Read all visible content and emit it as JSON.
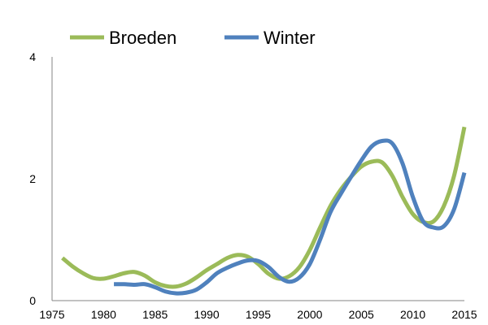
{
  "chart_data": {
    "type": "line",
    "title": "",
    "xlabel": "",
    "ylabel": "",
    "xlim": [
      1975,
      2015
    ],
    "ylim": [
      0,
      4
    ],
    "x_ticks": [
      1975,
      1980,
      1985,
      1990,
      1995,
      2000,
      2005,
      2010,
      2015
    ],
    "y_ticks": [
      0,
      2,
      4
    ],
    "grid": false,
    "legend_position": "top-left",
    "series": [
      {
        "name": "Broeden",
        "color": "#9BBB59",
        "points": [
          [
            1976,
            0.7
          ],
          [
            1977,
            0.56
          ],
          [
            1978,
            0.45
          ],
          [
            1979,
            0.37
          ],
          [
            1980,
            0.36
          ],
          [
            1981,
            0.4
          ],
          [
            1982,
            0.45
          ],
          [
            1983,
            0.47
          ],
          [
            1984,
            0.41
          ],
          [
            1985,
            0.3
          ],
          [
            1986,
            0.24
          ],
          [
            1987,
            0.23
          ],
          [
            1988,
            0.28
          ],
          [
            1989,
            0.38
          ],
          [
            1990,
            0.5
          ],
          [
            1991,
            0.6
          ],
          [
            1992,
            0.7
          ],
          [
            1993,
            0.75
          ],
          [
            1994,
            0.72
          ],
          [
            1995,
            0.6
          ],
          [
            1996,
            0.44
          ],
          [
            1997,
            0.36
          ],
          [
            1998,
            0.4
          ],
          [
            1999,
            0.55
          ],
          [
            2000,
            0.83
          ],
          [
            2001,
            1.2
          ],
          [
            2002,
            1.55
          ],
          [
            2003,
            1.82
          ],
          [
            2004,
            2.03
          ],
          [
            2005,
            2.2
          ],
          [
            2006,
            2.28
          ],
          [
            2007,
            2.27
          ],
          [
            2008,
            2.05
          ],
          [
            2009,
            1.7
          ],
          [
            2010,
            1.42
          ],
          [
            2011,
            1.29
          ],
          [
            2012,
            1.3
          ],
          [
            2013,
            1.55
          ],
          [
            2014,
            2.05
          ],
          [
            2015,
            2.85
          ]
        ]
      },
      {
        "name": "Winter",
        "color": "#4F81BD",
        "points": [
          [
            1981,
            0.27
          ],
          [
            1982,
            0.27
          ],
          [
            1983,
            0.26
          ],
          [
            1984,
            0.27
          ],
          [
            1985,
            0.22
          ],
          [
            1986,
            0.15
          ],
          [
            1987,
            0.12
          ],
          [
            1988,
            0.13
          ],
          [
            1989,
            0.18
          ],
          [
            1990,
            0.3
          ],
          [
            1991,
            0.45
          ],
          [
            1992,
            0.54
          ],
          [
            1993,
            0.61
          ],
          [
            1994,
            0.66
          ],
          [
            1995,
            0.65
          ],
          [
            1996,
            0.55
          ],
          [
            1997,
            0.39
          ],
          [
            1998,
            0.31
          ],
          [
            1999,
            0.38
          ],
          [
            2000,
            0.6
          ],
          [
            2001,
            1.0
          ],
          [
            2002,
            1.45
          ],
          [
            2003,
            1.75
          ],
          [
            2004,
            2.03
          ],
          [
            2005,
            2.3
          ],
          [
            2006,
            2.53
          ],
          [
            2007,
            2.62
          ],
          [
            2008,
            2.58
          ],
          [
            2009,
            2.25
          ],
          [
            2010,
            1.7
          ],
          [
            2011,
            1.3
          ],
          [
            2012,
            1.2
          ],
          [
            2013,
            1.22
          ],
          [
            2014,
            1.5
          ],
          [
            2015,
            2.1
          ]
        ]
      }
    ]
  }
}
